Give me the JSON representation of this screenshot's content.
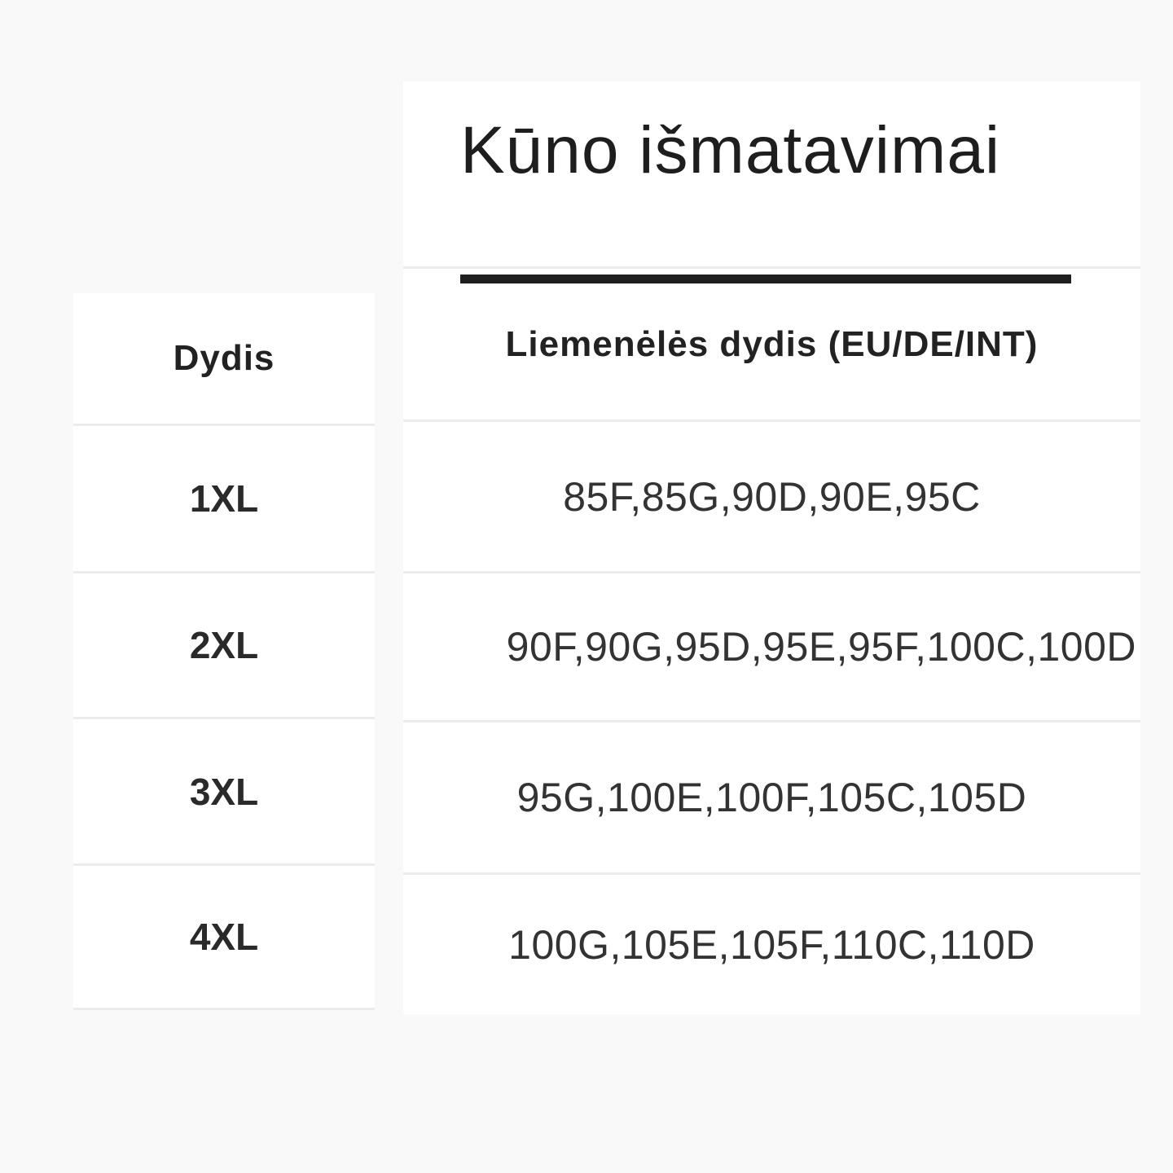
{
  "title": "Kūno išmatavimai",
  "table": {
    "headers": [
      "Dydis",
      "Liemenėlės dydis (EU/DE/INT)"
    ],
    "rows": [
      {
        "size": "1XL",
        "bra": "85F,85G,90D,90E,95C"
      },
      {
        "size": "2XL",
        "bra": "90F,90G,95D,95E,95F,100C,100D"
      },
      {
        "size": "3XL",
        "bra": "95G,100E,100F,105C,105D"
      },
      {
        "size": "4XL",
        "bra": "100G,105E,105F,110C,110D"
      }
    ]
  },
  "colors": {
    "background": "#f9f9f9",
    "cell": "#ffffff",
    "text": "#222222",
    "divider": "#ececec"
  }
}
